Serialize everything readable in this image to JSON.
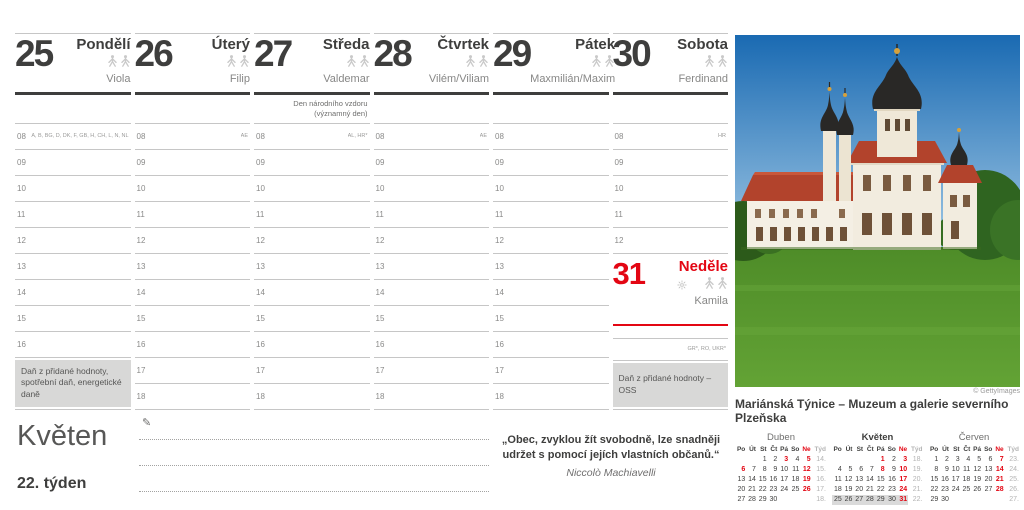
{
  "page": {
    "month_title": "Květen",
    "week_label": "22. týden",
    "quote": {
      "text": "„Obec, zvyklou žít svobodně, lze snadněji udržet s pomocí jejích vlastních občanů.“",
      "author": "Niccolò Machiavelli"
    },
    "photo": {
      "credit": "© GettyImages",
      "caption": "Mariánská Týnice – Muzeum a galerie severního Plzeňska",
      "description": "Baroque church complex with black onion domes and red roofs, blue sky, green lawn"
    }
  },
  "colors": {
    "red": "#e30613",
    "dark": "#3e3e3d",
    "gray_text": "#878786",
    "line": "#c6c6c6",
    "box_bg": "#d8d8d7"
  },
  "days": [
    {
      "key": "monday",
      "number": "25",
      "name": "Pondělí",
      "nameday": "Viola",
      "note": [],
      "slots": [
        {
          "h": "08",
          "tag": "A, B, BG, D, DK, F, GB, H, CH, L, N, NL"
        },
        {
          "h": "09"
        },
        {
          "h": "10"
        },
        {
          "h": "11"
        },
        {
          "h": "12"
        },
        {
          "h": "13"
        },
        {
          "h": "14"
        },
        {
          "h": "15"
        },
        {
          "h": "16"
        }
      ],
      "footer_box": "Daň z přidané hodnoty, spotřební daň, energetické daně"
    },
    {
      "key": "tuesday",
      "number": "26",
      "name": "Úterý",
      "nameday": "Filip",
      "note": [],
      "slots": [
        {
          "h": "08",
          "tag": "AE"
        },
        {
          "h": "09"
        },
        {
          "h": "10"
        },
        {
          "h": "11"
        },
        {
          "h": "12"
        },
        {
          "h": "13"
        },
        {
          "h": "14"
        },
        {
          "h": "15"
        },
        {
          "h": "16"
        },
        {
          "h": "17"
        },
        {
          "h": "18"
        }
      ]
    },
    {
      "key": "wednesday",
      "number": "27",
      "name": "Středa",
      "nameday": "Valdemar",
      "note": [
        "Den národního vzdoru",
        "(významný den)"
      ],
      "slots": [
        {
          "h": "08",
          "tag": "AL, HR*"
        },
        {
          "h": "09"
        },
        {
          "h": "10"
        },
        {
          "h": "11"
        },
        {
          "h": "12"
        },
        {
          "h": "13"
        },
        {
          "h": "14"
        },
        {
          "h": "15"
        },
        {
          "h": "16"
        },
        {
          "h": "17"
        },
        {
          "h": "18"
        }
      ]
    },
    {
      "key": "thursday",
      "number": "28",
      "name": "Čtvrtek",
      "nameday": "Vilém/Viliam",
      "note": [],
      "slots": [
        {
          "h": "08",
          "tag": "AE"
        },
        {
          "h": "09"
        },
        {
          "h": "10"
        },
        {
          "h": "11"
        },
        {
          "h": "12"
        },
        {
          "h": "13"
        },
        {
          "h": "14"
        },
        {
          "h": "15"
        },
        {
          "h": "16"
        },
        {
          "h": "17"
        },
        {
          "h": "18"
        }
      ]
    },
    {
      "key": "friday",
      "number": "29",
      "name": "Pátek",
      "nameday": "Maxmilián/Maxim",
      "note": [],
      "slots": [
        {
          "h": "08"
        },
        {
          "h": "09"
        },
        {
          "h": "10"
        },
        {
          "h": "11"
        },
        {
          "h": "12"
        },
        {
          "h": "13"
        },
        {
          "h": "14"
        },
        {
          "h": "15"
        },
        {
          "h": "16"
        },
        {
          "h": "17"
        },
        {
          "h": "18"
        }
      ]
    },
    {
      "key": "saturday",
      "number": "30",
      "name": "Sobota",
      "nameday": "Ferdinand",
      "note": [],
      "slots": [
        {
          "h": "08",
          "tag": "HR"
        },
        {
          "h": "09"
        },
        {
          "h": "10"
        },
        {
          "h": "11"
        },
        {
          "h": "12"
        }
      ],
      "sunday": {
        "number": "31",
        "name": "Neděle",
        "nameday": "Kamila"
      },
      "extra_tag": "GR*, RO, UKR*",
      "footer_box": "Daň z přidané hodnoty – OSS"
    }
  ],
  "mini_calendars": [
    {
      "key": "duben",
      "title": "Duben",
      "current": false,
      "dow": [
        "Po",
        "Út",
        "St",
        "Čt",
        "Pá",
        "So",
        "Ne"
      ],
      "week_col": "Týd",
      "weeks": [
        {
          "days": [
            "",
            "",
            "1",
            "2",
            "3",
            "4",
            "5"
          ],
          "red": [
            "3",
            "5"
          ],
          "num": "14."
        },
        {
          "days": [
            "6",
            "7",
            "8",
            "9",
            "10",
            "11",
            "12"
          ],
          "red": [
            "6",
            "12"
          ],
          "num": "15."
        },
        {
          "days": [
            "13",
            "14",
            "15",
            "16",
            "17",
            "18",
            "19"
          ],
          "red": [
            "19"
          ],
          "num": "16."
        },
        {
          "days": [
            "20",
            "21",
            "22",
            "23",
            "24",
            "25",
            "26"
          ],
          "red": [
            "26"
          ],
          "num": "17."
        },
        {
          "days": [
            "27",
            "28",
            "29",
            "30",
            "",
            "",
            ""
          ],
          "red": [],
          "num": "18."
        }
      ]
    },
    {
      "key": "kveten",
      "title": "Květen",
      "current": true,
      "dow": [
        "Po",
        "Út",
        "St",
        "Čt",
        "Pá",
        "So",
        "Ne"
      ],
      "week_col": "Týd",
      "weeks": [
        {
          "days": [
            "",
            "",
            "",
            "",
            "1",
            "2",
            "3"
          ],
          "red": [
            "1",
            "3"
          ],
          "num": "18."
        },
        {
          "days": [
            "4",
            "5",
            "6",
            "7",
            "8",
            "9",
            "10"
          ],
          "red": [
            "8",
            "10"
          ],
          "num": "19."
        },
        {
          "days": [
            "11",
            "12",
            "13",
            "14",
            "15",
            "16",
            "17"
          ],
          "red": [
            "17"
          ],
          "num": "20."
        },
        {
          "days": [
            "18",
            "19",
            "20",
            "21",
            "22",
            "23",
            "24"
          ],
          "red": [
            "24"
          ],
          "num": "21."
        },
        {
          "days": [
            "25",
            "26",
            "27",
            "28",
            "29",
            "30",
            "31"
          ],
          "red": [
            "31"
          ],
          "num": "22.",
          "highlight": true
        }
      ]
    },
    {
      "key": "cerven",
      "title": "Červen",
      "current": false,
      "dow": [
        "Po",
        "Út",
        "St",
        "Čt",
        "Pá",
        "So",
        "Ne"
      ],
      "week_col": "Týd",
      "weeks": [
        {
          "days": [
            "1",
            "2",
            "3",
            "4",
            "5",
            "6",
            "7"
          ],
          "red": [
            "7"
          ],
          "num": "23."
        },
        {
          "days": [
            "8",
            "9",
            "10",
            "11",
            "12",
            "13",
            "14"
          ],
          "red": [
            "14"
          ],
          "num": "24."
        },
        {
          "days": [
            "15",
            "16",
            "17",
            "18",
            "19",
            "20",
            "21"
          ],
          "red": [
            "21"
          ],
          "num": "25."
        },
        {
          "days": [
            "22",
            "23",
            "24",
            "25",
            "26",
            "27",
            "28"
          ],
          "red": [
            "28"
          ],
          "num": "26."
        },
        {
          "days": [
            "29",
            "30",
            "",
            "",
            "",
            "",
            ""
          ],
          "red": [],
          "num": "27."
        }
      ]
    }
  ]
}
